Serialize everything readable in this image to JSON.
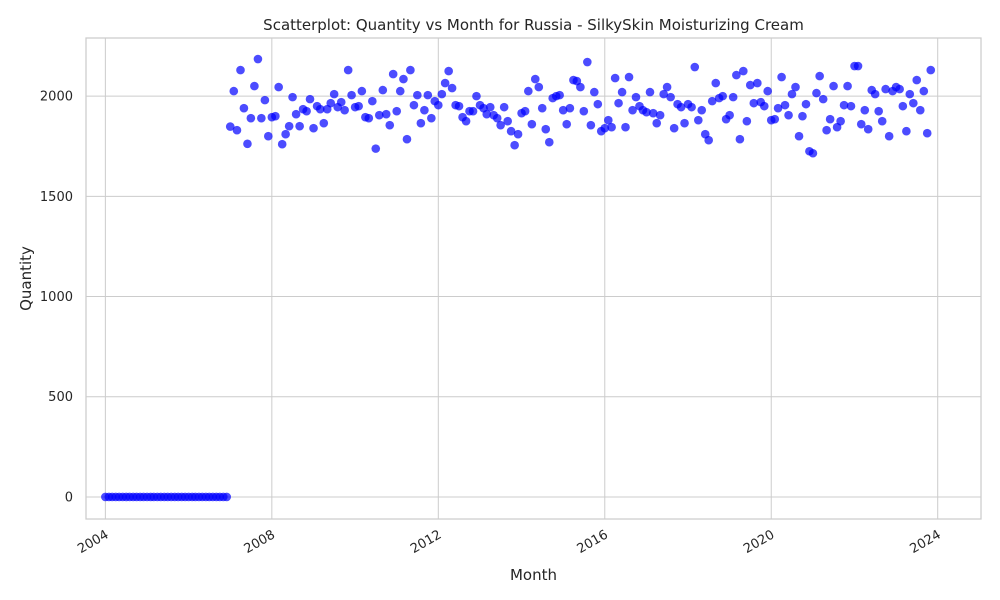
{
  "chart_data": {
    "type": "scatter",
    "title": "Scatterplot: Quantity vs Month for Russia - SilkySkin Moisturizing Cream",
    "xlabel": "Month",
    "ylabel": "Quantity",
    "xlim": [
      "2003-07-15",
      "2025-01-15"
    ],
    "ylim": [
      -110,
      2290
    ],
    "x_ticks": [
      "2004",
      "2008",
      "2012",
      "2016",
      "2020",
      "2024"
    ],
    "y_ticks": [
      0,
      500,
      1000,
      1500,
      2000
    ],
    "grid": true,
    "marker_color": "#0000ff",
    "x_start": "2004-01",
    "values": [
      0,
      0,
      0,
      0,
      0,
      0,
      0,
      0,
      0,
      0,
      0,
      0,
      0,
      0,
      0,
      0,
      0,
      0,
      0,
      0,
      0,
      0,
      0,
      0,
      0,
      0,
      0,
      0,
      0,
      0,
      0,
      0,
      0,
      0,
      0,
      0,
      1848,
      2025,
      1830,
      2130,
      1940,
      1762,
      1890,
      2050,
      2185,
      1890,
      1980,
      1800,
      1895,
      1900,
      2045,
      1760,
      1810,
      1850,
      1995,
      1910,
      1850,
      1935,
      1925,
      1985,
      1840,
      1950,
      1935,
      1865,
      1935,
      1965,
      2010,
      1945,
      1970,
      1930,
      2130,
      2005,
      1945,
      1950,
      2025,
      1895,
      1890,
      1975,
      1738,
      1905,
      2030,
      1910,
      1855,
      2110,
      1925,
      2025,
      2085,
      1785,
      2130,
      1955,
      2005,
      1865,
      1930,
      2005,
      1890,
      1975,
      1955,
      2010,
      2065,
      2125,
      2040,
      1955,
      1950,
      1895,
      1875,
      1925,
      1925,
      2000,
      1955,
      1940,
      1910,
      1945,
      1905,
      1890,
      1855,
      1945,
      1875,
      1825,
      1755,
      1810,
      1915,
      1925,
      2025,
      1860,
      2085,
      2045,
      1940,
      1835,
      1770,
      1990,
      2000,
      2005,
      1930,
      1860,
      1940,
      2080,
      2075,
      2045,
      1925,
      2170,
      1855,
      2020,
      1960,
      1825,
      1840,
      1880,
      1845,
      2090,
      1965,
      2020,
      1845,
      2095,
      1930,
      1995,
      1950,
      1930,
      1920,
      2020,
      1915,
      1865,
      1905,
      2010,
      2045,
      1995,
      1840,
      1960,
      1945,
      1865,
      1960,
      1945,
      2145,
      1880,
      1930,
      1810,
      1780,
      1975,
      2065,
      1990,
      2000,
      1885,
      1905,
      1995,
      2105,
      1785,
      2125,
      1875,
      2055,
      1965,
      2065,
      1970,
      1950,
      2025,
      1880,
      1885,
      1940,
      2095,
      1955,
      1905,
      2010,
      2045,
      1800,
      1900,
      1960,
      1725,
      1715,
      2015,
      2100,
      1985,
      1830,
      1885,
      2050,
      1845,
      1875,
      1955,
      2050,
      1950,
      2150,
      2150,
      1860,
      1930,
      1835,
      2030,
      2010,
      1925,
      1875,
      2035,
      1800,
      2025,
      2045,
      2035,
      1950,
      1825,
      2010,
      1965,
      2080,
      1930,
      2025,
      1815,
      2130
    ]
  }
}
